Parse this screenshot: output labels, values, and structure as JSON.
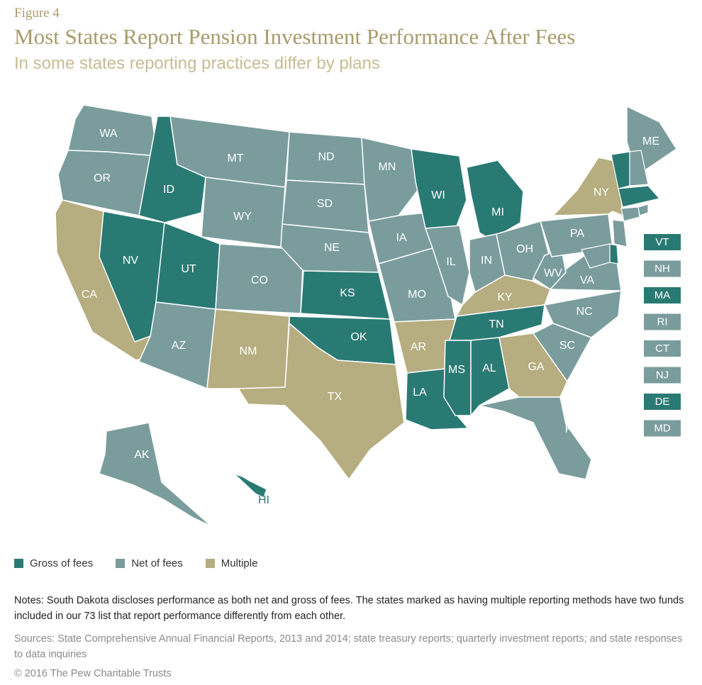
{
  "figure_label": "Figure 4",
  "title": "Most States Report Pension Investment Performance After Fees",
  "subtitle": "In some states reporting practices differ by plans",
  "colors": {
    "gross": "#2a7a74",
    "net": "#7a9c9c",
    "multiple": "#b6ad80",
    "border": "#ffffff",
    "label": "#ffffff"
  },
  "legend": [
    {
      "key": "gross",
      "label": "Gross of fees"
    },
    {
      "key": "net",
      "label": "Net of fees"
    },
    {
      "key": "multiple",
      "label": "Multiple"
    }
  ],
  "states": [
    {
      "abbr": "WA",
      "cat": "net"
    },
    {
      "abbr": "OR",
      "cat": "net"
    },
    {
      "abbr": "CA",
      "cat": "multiple"
    },
    {
      "abbr": "ID",
      "cat": "gross"
    },
    {
      "abbr": "NV",
      "cat": "gross"
    },
    {
      "abbr": "MT",
      "cat": "net"
    },
    {
      "abbr": "WY",
      "cat": "net"
    },
    {
      "abbr": "UT",
      "cat": "gross"
    },
    {
      "abbr": "AZ",
      "cat": "net"
    },
    {
      "abbr": "CO",
      "cat": "net"
    },
    {
      "abbr": "NM",
      "cat": "multiple"
    },
    {
      "abbr": "ND",
      "cat": "net"
    },
    {
      "abbr": "SD",
      "cat": "net"
    },
    {
      "abbr": "NE",
      "cat": "net"
    },
    {
      "abbr": "KS",
      "cat": "gross"
    },
    {
      "abbr": "OK",
      "cat": "gross"
    },
    {
      "abbr": "TX",
      "cat": "multiple"
    },
    {
      "abbr": "MN",
      "cat": "net"
    },
    {
      "abbr": "IA",
      "cat": "net"
    },
    {
      "abbr": "MO",
      "cat": "net"
    },
    {
      "abbr": "AR",
      "cat": "multiple"
    },
    {
      "abbr": "LA",
      "cat": "gross"
    },
    {
      "abbr": "WI",
      "cat": "gross"
    },
    {
      "abbr": "IL",
      "cat": "net"
    },
    {
      "abbr": "MI",
      "cat": "gross"
    },
    {
      "abbr": "IN",
      "cat": "net"
    },
    {
      "abbr": "OH",
      "cat": "net"
    },
    {
      "abbr": "KY",
      "cat": "multiple"
    },
    {
      "abbr": "TN",
      "cat": "gross"
    },
    {
      "abbr": "MS",
      "cat": "gross"
    },
    {
      "abbr": "AL",
      "cat": "gross"
    },
    {
      "abbr": "GA",
      "cat": "multiple"
    },
    {
      "abbr": "FL",
      "cat": "net"
    },
    {
      "abbr": "SC",
      "cat": "net"
    },
    {
      "abbr": "NC",
      "cat": "net"
    },
    {
      "abbr": "VA",
      "cat": "net"
    },
    {
      "abbr": "WV",
      "cat": "net"
    },
    {
      "abbr": "PA",
      "cat": "net"
    },
    {
      "abbr": "NY",
      "cat": "multiple"
    },
    {
      "abbr": "ME",
      "cat": "net"
    },
    {
      "abbr": "AK",
      "cat": "net"
    },
    {
      "abbr": "HI",
      "cat": "gross"
    }
  ],
  "small_states": [
    {
      "abbr": "VT",
      "cat": "gross"
    },
    {
      "abbr": "NH",
      "cat": "net"
    },
    {
      "abbr": "MA",
      "cat": "gross"
    },
    {
      "abbr": "RI",
      "cat": "net"
    },
    {
      "abbr": "CT",
      "cat": "net"
    },
    {
      "abbr": "NJ",
      "cat": "net"
    },
    {
      "abbr": "DE",
      "cat": "gross"
    },
    {
      "abbr": "MD",
      "cat": "net"
    }
  ],
  "notes": "Notes: South Dakota discloses performance as both net and gross of fees. The states marked as having multiple reporting methods have two funds included in our 73 list that report performance differently from each other.",
  "sources": "Sources: State Comprehensive Annual Financial Reports, 2013 and 2014; state treasury reports; quarterly investment reports; and state responses to data inquiries",
  "copyright": "© 2016 The Pew Charitable Trusts"
}
